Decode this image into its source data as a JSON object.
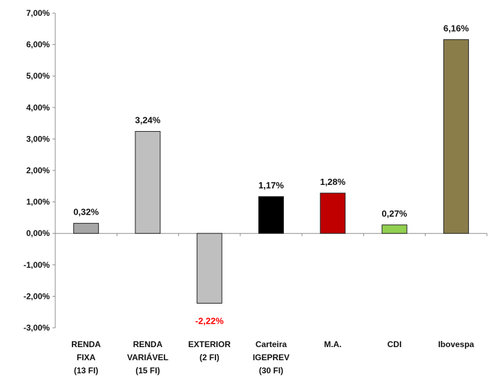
{
  "chart_data": {
    "type": "bar",
    "title": "",
    "xlabel": "",
    "ylabel": "",
    "ylim": [
      -3,
      7
    ],
    "grid": false,
    "legend": "none",
    "y_ticks": [
      {
        "value": 7,
        "label": "7,00%"
      },
      {
        "value": 6,
        "label": "6,00%"
      },
      {
        "value": 5,
        "label": "5,00%"
      },
      {
        "value": 4,
        "label": "4,00%"
      },
      {
        "value": 3,
        "label": "3,00%"
      },
      {
        "value": 2,
        "label": "2,00%"
      },
      {
        "value": 1,
        "label": "1,00%"
      },
      {
        "value": 0,
        "label": "0,00%"
      },
      {
        "value": -1,
        "label": "-1,00%"
      },
      {
        "value": -2,
        "label": "-2,00%"
      },
      {
        "value": -3,
        "label": "-3,00%"
      }
    ],
    "bars": [
      {
        "category": [
          "RENDA",
          "FIXA",
          "(13 FI)"
        ],
        "value": 0.32,
        "label": "0,32%",
        "color": "#a6a6a6",
        "label_color": "#111111"
      },
      {
        "category": [
          "RENDA",
          "VARIÁVEL",
          "(15 FI)"
        ],
        "value": 3.24,
        "label": "3,24%",
        "color": "#bfbfbf",
        "label_color": "#111111"
      },
      {
        "category": [
          "EXTERIOR",
          "(2 FI)"
        ],
        "value": -2.22,
        "label": "-2,22%",
        "color": "#bfbfbf",
        "label_color": "#ff0000"
      },
      {
        "category": [
          "Carteira",
          "IGEPREV",
          "(30 FI)"
        ],
        "value": 1.17,
        "label": "1,17%",
        "color": "#000000",
        "label_color": "#111111"
      },
      {
        "category": [
          "M.A."
        ],
        "value": 1.28,
        "label": "1,28%",
        "color": "#c00000",
        "label_color": "#111111"
      },
      {
        "category": [
          "CDI"
        ],
        "value": 0.27,
        "label": "0,27%",
        "color": "#92d050",
        "label_color": "#111111"
      },
      {
        "category": [
          "Ibovespa"
        ],
        "value": 6.16,
        "label": "6,16%",
        "color": "#8b7d4a",
        "label_color": "#111111"
      }
    ]
  }
}
